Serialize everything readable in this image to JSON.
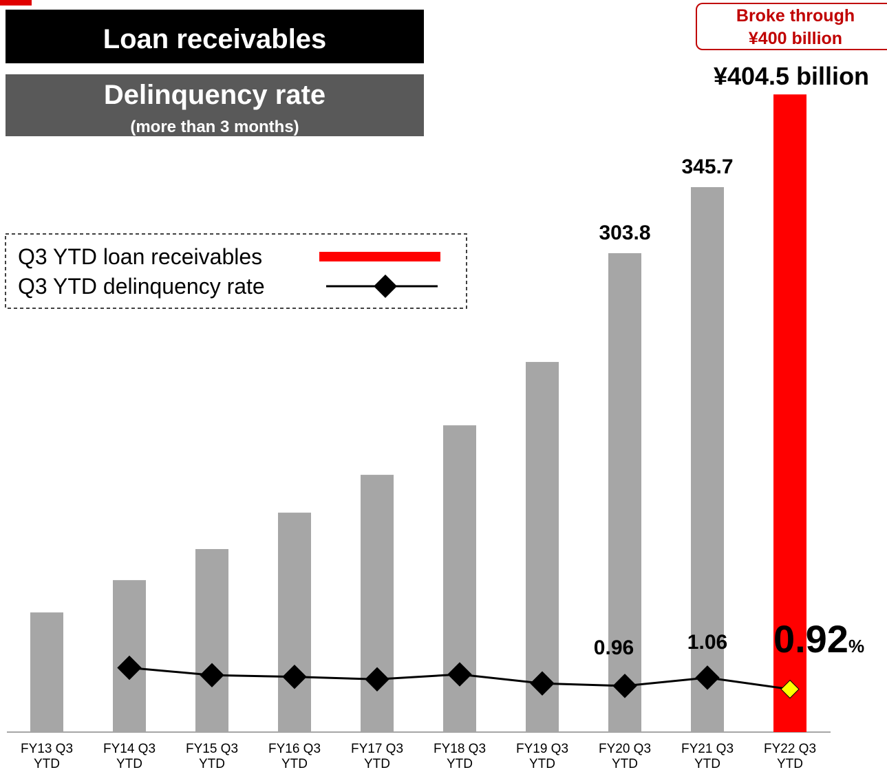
{
  "chart_data": {
    "type": "bar-line",
    "headers": [
      "Loan receivables",
      "Delinquency rate",
      "(more than 3 months)"
    ],
    "annotation": [
      "Broke through",
      "¥400 billion"
    ],
    "categories": [
      "FY13 Q3 YTD",
      "FY14 Q3 YTD",
      "FY15 Q3 YTD",
      "FY16 Q3 YTD",
      "FY17 Q3 YTD",
      "FY18 Q3 YTD",
      "FY19 Q3 YTD",
      "FY20 Q3 YTD",
      "FY21 Q3 YTD",
      "FY22 Q3 YTD"
    ],
    "ylim": [
      0,
      450
    ],
    "y2lim": [
      0.4,
      9
    ],
    "series": [
      {
        "name": "Q3 YTD loan receivables",
        "color": "#ff0000",
        "colors": [
          "#a6a6a6",
          "#a6a6a6",
          "#a6a6a6",
          "#a6a6a6",
          "#a6a6a6",
          "#a6a6a6",
          "#a6a6a6",
          "#a6a6a6",
          "#a6a6a6",
          "#ff0000"
        ],
        "values": [
          75.9,
          96.4,
          116.1,
          139.2,
          163.2,
          194.6,
          234.8,
          303.8,
          345.7,
          404.5
        ],
        "value_labels": [
          null,
          null,
          null,
          null,
          null,
          null,
          null,
          "303.8",
          "345.7",
          "¥404.5 billion"
        ]
      },
      {
        "name": "Q3 YTD delinquency rate",
        "color": "#000000",
        "axis": "y2",
        "marker_colors": [
          "#000000",
          "#000000",
          "#000000",
          "#000000",
          "#000000",
          "#000000",
          "#000000",
          "#000000",
          "#000000",
          "#ffff00"
        ],
        "values": [
          null,
          1.18,
          1.09,
          1.07,
          1.04,
          1.1,
          0.99,
          0.96,
          1.06,
          0.92
        ],
        "value_labels": [
          null,
          null,
          null,
          null,
          null,
          null,
          null,
          "0.96",
          "1.06",
          "0.92%"
        ]
      }
    ]
  }
}
